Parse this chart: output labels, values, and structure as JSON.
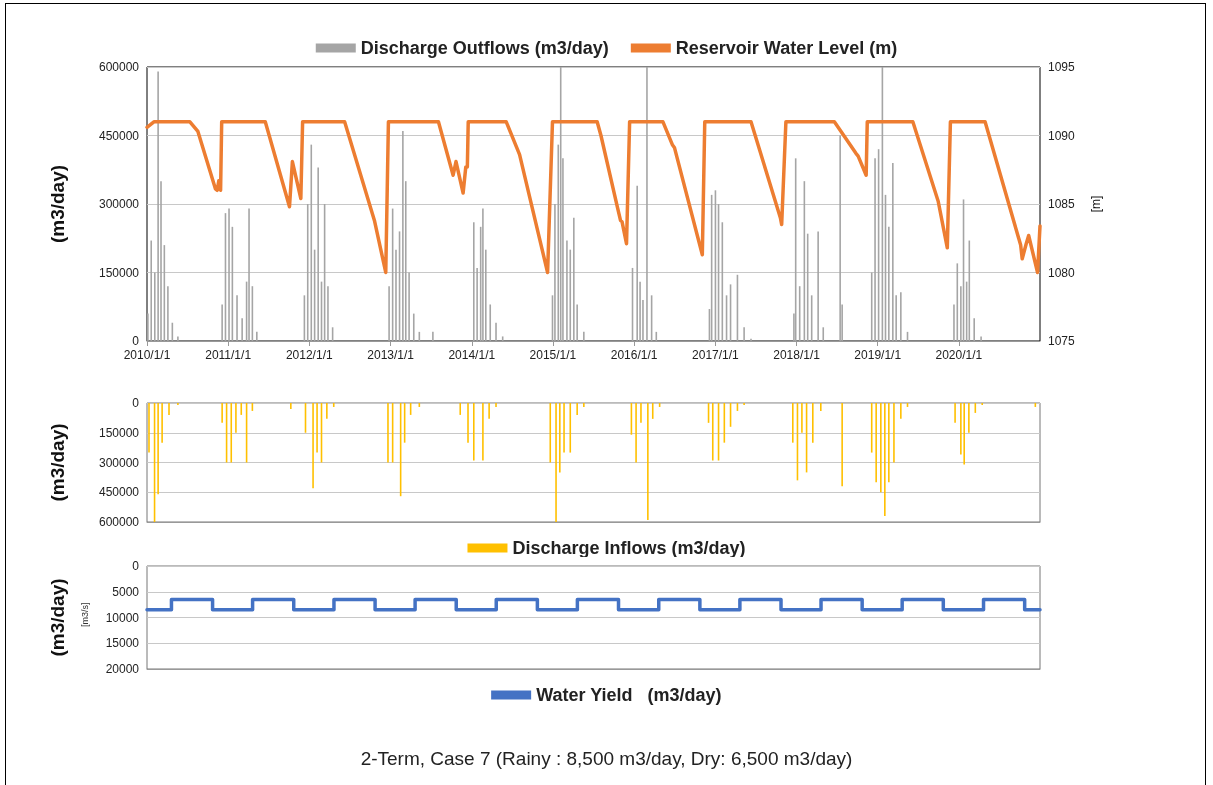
{
  "chart_data": [
    {
      "type": "bar",
      "ylabel": "(m3/day)",
      "y2label": "[m]",
      "xlim": [
        "2010-01-01",
        "2020-12-31"
      ],
      "xticks": [
        {
          "value": "2010-01-01",
          "label": "2010/1/1"
        },
        {
          "value": "2011-01-01",
          "label": "2011/1/1"
        },
        {
          "value": "2012-01-01",
          "label": "2012/1/1"
        },
        {
          "value": "2013-01-01",
          "label": "2013/1/1"
        },
        {
          "value": "2014-01-01",
          "label": "2014/1/1"
        },
        {
          "value": "2015-01-01",
          "label": "2015/1/1"
        },
        {
          "value": "2016-01-01",
          "label": "2016/1/1"
        },
        {
          "value": "2017-01-01",
          "label": "2017/1/1"
        },
        {
          "value": "2018-01-01",
          "label": "2018/1/1"
        },
        {
          "value": "2019-01-01",
          "label": "2019/1/1"
        },
        {
          "value": "2020-01-01",
          "label": "2020/1/1"
        }
      ],
      "ylim": [
        0,
        600000
      ],
      "yticks": [
        0,
        150000,
        300000,
        450000,
        600000
      ],
      "y2lim": [
        1075,
        1095
      ],
      "y2ticks": [
        1075,
        1080,
        1085,
        1090,
        1095
      ],
      "grid": "y",
      "legend": "top",
      "marker": "none",
      "line_style": "solid",
      "series": [
        {
          "name": "Discharge Outflows (m3/day)",
          "color": "#a5a5a5",
          "x": [
            "2010-01-05",
            "2010-01-20",
            "2010-02-05",
            "2010-02-20",
            "2010-03-05",
            "2010-03-20",
            "2010-04-05",
            "2010-04-25",
            "2010-05-20",
            "2010-12-05",
            "2010-12-20",
            "2011-01-05",
            "2011-01-20",
            "2011-02-10",
            "2011-03-05",
            "2011-03-25",
            "2011-04-05",
            "2011-04-20",
            "2011-05-10",
            "2011-12-10",
            "2011-12-25",
            "2012-01-10",
            "2012-01-25",
            "2012-02-10",
            "2012-02-25",
            "2012-03-10",
            "2012-03-25",
            "2012-04-15",
            "2012-12-25",
            "2013-01-10",
            "2013-01-25",
            "2013-02-10",
            "2013-02-25",
            "2013-03-10",
            "2013-03-25",
            "2013-04-15",
            "2013-05-10",
            "2013-07-10",
            "2014-01-10",
            "2014-01-25",
            "2014-02-10",
            "2014-02-20",
            "2014-03-05",
            "2014-03-25",
            "2014-04-20",
            "2014-05-20",
            "2014-12-30",
            "2015-01-10",
            "2015-01-25",
            "2015-02-05",
            "2015-02-15",
            "2015-03-05",
            "2015-03-20",
            "2015-04-05",
            "2015-04-20",
            "2015-05-20",
            "2015-12-25",
            "2016-01-15",
            "2016-01-28",
            "2016-02-10",
            "2016-02-28",
            "2016-03-20",
            "2016-04-10",
            "2016-12-05",
            "2016-12-15",
            "2017-01-01",
            "2017-01-15",
            "2017-02-01",
            "2017-02-20",
            "2017-03-10",
            "2017-04-10",
            "2017-05-10",
            "2017-06-10",
            "2017-12-20",
            "2017-12-28",
            "2018-01-15",
            "2018-02-05",
            "2018-02-20",
            "2018-03-10",
            "2018-04-08",
            "2018-05-01",
            "2018-07-16",
            "2018-07-25",
            "2018-12-05",
            "2018-12-20",
            "2019-01-05",
            "2019-01-22",
            "2019-02-05",
            "2019-02-20",
            "2019-03-10",
            "2019-03-25",
            "2019-04-15",
            "2019-05-15",
            "2019-12-10",
            "2019-12-25",
            "2020-01-10",
            "2020-01-22",
            "2020-02-05",
            "2020-02-17",
            "2020-03-10",
            "2020-04-10"
          ],
          "values": [
            60000,
            220000,
            150000,
            590000,
            350000,
            210000,
            120000,
            40000,
            10000,
            80000,
            280000,
            290000,
            250000,
            100000,
            50000,
            130000,
            290000,
            120000,
            20000,
            100000,
            300000,
            430000,
            200000,
            380000,
            130000,
            300000,
            120000,
            30000,
            120000,
            290000,
            200000,
            240000,
            460000,
            350000,
            150000,
            60000,
            20000,
            20000,
            260000,
            160000,
            250000,
            290000,
            200000,
            80000,
            40000,
            10000,
            100000,
            300000,
            430000,
            600000,
            400000,
            220000,
            200000,
            270000,
            80000,
            20000,
            160000,
            340000,
            130000,
            90000,
            600000,
            100000,
            20000,
            70000,
            320000,
            330000,
            300000,
            260000,
            100000,
            124000,
            145000,
            30000,
            5000,
            60000,
            400000,
            120000,
            350000,
            235000,
            100000,
            240000,
            30000,
            450000,
            80000,
            150000,
            400000,
            420000,
            600000,
            320000,
            250000,
            390000,
            100000,
            107000,
            20000,
            80000,
            170000,
            120000,
            310000,
            130000,
            220000,
            50000,
            10000
          ]
        },
        {
          "name": "Reservoir Water Level (m)",
          "type": "line",
          "axis": "y2",
          "color": "#ed7d31",
          "x": [
            "2010-01-01",
            "2010-02-01",
            "2010-07-13",
            "2010-08-18",
            "2010-11-05",
            "2010-11-13",
            "2010-11-20",
            "2010-11-28",
            "2010-12-03",
            "2011-06-17",
            "2011-10-04",
            "2011-10-17",
            "2011-11-24",
            "2011-12-02",
            "2012-06-08",
            "2012-10-20",
            "2012-12-10",
            "2012-12-22",
            "2013-08-04",
            "2013-10-09",
            "2013-10-22",
            "2013-11-23",
            "2013-12-05",
            "2013-12-12",
            "2013-12-16",
            "2014-06-05",
            "2014-08-04",
            "2014-12-08",
            "2014-12-30",
            "2015-07-19",
            "2015-08-05",
            "2015-10-19",
            "2015-11-01",
            "2015-11-08",
            "2015-11-28",
            "2015-12-12",
            "2016-05-10",
            "2016-06-22",
            "2016-07-01",
            "2016-11-03",
            "2016-11-14",
            "2017-06-10",
            "2017-10-20",
            "2017-10-26",
            "2017-11-14",
            "2018-06-20",
            "2018-09-25",
            "2018-10-05",
            "2018-11-10",
            "2018-11-15",
            "2019-06-08",
            "2019-09-30",
            "2019-11-10",
            "2019-11-24",
            "2020-04-28",
            "2020-10-05",
            "2020-10-12",
            "2020-10-30",
            "2020-11-10",
            "2020-12-20",
            "2020-12-31"
          ],
          "values": [
            1090.6,
            1091,
            1091,
            1090.3,
            1086.1,
            1086,
            1086.7,
            1086,
            1091,
            1091,
            1084.8,
            1088.1,
            1085.4,
            1091,
            1091,
            1083.8,
            1080,
            1091,
            1091,
            1087.1,
            1088.1,
            1085.8,
            1087.7,
            1087.7,
            1091,
            1091,
            1088.6,
            1080,
            1091,
            1091,
            1090,
            1084.7,
            1083.8,
            1083.7,
            1082.1,
            1091,
            1091,
            1089.3,
            1089.1,
            1081.3,
            1091,
            1091,
            1084,
            1083.5,
            1091,
            1091,
            1088.7,
            1088.5,
            1087.1,
            1091,
            1091,
            1085.2,
            1081.8,
            1091,
            1091,
            1082,
            1081,
            1082.1,
            1082.7,
            1080,
            1083.4
          ]
        }
      ]
    },
    {
      "type": "bar",
      "ylabel": "(m3/day)",
      "xlim": [
        "2010-01-01",
        "2020-12-31"
      ],
      "ylim": [
        600000,
        0
      ],
      "yticks": [
        0,
        150000,
        300000,
        450000,
        600000
      ],
      "grid": "y",
      "legend": "bottom",
      "tick_labels": "y",
      "series": [
        {
          "name": "Discharge Inflows (m3/day)",
          "color": "#ffc000",
          "x": [
            "2010-01-10",
            "2010-02-04",
            "2010-02-20",
            "2010-03-10",
            "2010-04-10",
            "2010-05-20",
            "2010-12-05",
            "2010-12-25",
            "2011-01-15",
            "2011-02-05",
            "2011-03-01",
            "2011-03-25",
            "2011-04-20",
            "2011-10-10",
            "2011-12-15",
            "2012-01-18",
            "2012-02-05",
            "2012-02-25",
            "2012-03-20",
            "2012-04-20",
            "2012-12-20",
            "2013-01-10",
            "2013-02-15",
            "2013-03-05",
            "2013-04-01",
            "2013-05-10",
            "2013-11-10",
            "2013-12-15",
            "2014-01-10",
            "2014-02-20",
            "2014-03-20",
            "2014-04-20",
            "2014-12-20",
            "2015-01-15",
            "2015-02-01",
            "2015-02-20",
            "2015-03-20",
            "2015-04-20",
            "2015-05-20",
            "2015-12-20",
            "2016-01-10",
            "2016-02-01",
            "2016-03-03",
            "2016-03-25",
            "2016-04-25",
            "2016-12-01",
            "2016-12-20",
            "2017-01-15",
            "2017-02-10",
            "2017-03-10",
            "2017-04-10",
            "2017-05-10",
            "2017-12-15",
            "2018-01-05",
            "2018-01-25",
            "2018-02-15",
            "2018-03-15",
            "2018-04-20",
            "2018-07-25",
            "2018-12-05",
            "2018-12-25",
            "2019-01-15",
            "2019-02-02",
            "2019-02-20",
            "2019-03-15",
            "2019-04-15",
            "2019-05-15",
            "2019-12-15",
            "2020-01-10",
            "2020-01-25",
            "2020-02-15",
            "2020-03-15",
            "2020-04-15",
            "2020-12-10"
          ],
          "values": [
            250000,
            600000,
            460000,
            200000,
            60000,
            10000,
            100000,
            300000,
            300000,
            150000,
            60000,
            300000,
            40000,
            30000,
            150000,
            430000,
            250000,
            300000,
            80000,
            20000,
            300000,
            300000,
            470000,
            200000,
            60000,
            20000,
            60000,
            200000,
            290000,
            290000,
            80000,
            20000,
            300000,
            600000,
            350000,
            250000,
            250000,
            60000,
            20000,
            160000,
            300000,
            100000,
            590000,
            80000,
            20000,
            100000,
            290000,
            290000,
            200000,
            120000,
            40000,
            10000,
            200000,
            390000,
            150000,
            350000,
            200000,
            40000,
            420000,
            250000,
            400000,
            450000,
            570000,
            400000,
            300000,
            80000,
            20000,
            100000,
            260000,
            310000,
            150000,
            50000,
            10000,
            20000
          ]
        }
      ]
    },
    {
      "type": "step",
      "ylabel": "(m3/day)",
      "annotations": [
        "[m3/s]",
        "2-Term, Case 7 (Rainy : 8,500 m3/day, Dry: 6,500 m3/day)"
      ],
      "xlim": [
        "2010-01-01",
        "2020-12-31"
      ],
      "ylim": [
        20000,
        0
      ],
      "yticks": [
        0,
        5000,
        10000,
        15000,
        20000
      ],
      "grid": "y",
      "legend": "bottom",
      "tick_labels": "y",
      "marker": "none",
      "line_style": "solid",
      "series": [
        {
          "name": "Water Yield   (m3/day)",
          "color": "#4472c4",
          "x": [
            "2010-01-01",
            "2010-04-21",
            "2010-10-23",
            "2011-04-21",
            "2011-10-23",
            "2012-04-21",
            "2012-10-23",
            "2013-04-21",
            "2013-10-23",
            "2014-04-21",
            "2014-10-23",
            "2015-04-21",
            "2015-10-23",
            "2016-04-21",
            "2016-10-23",
            "2017-04-21",
            "2017-10-23",
            "2018-04-21",
            "2018-10-23",
            "2019-04-21",
            "2019-10-23",
            "2020-04-21",
            "2020-10-23",
            "2020-12-31"
          ],
          "values": [
            8500,
            6500,
            8500,
            6500,
            8500,
            6500,
            8500,
            6500,
            8500,
            6500,
            8500,
            6500,
            8500,
            6500,
            8500,
            6500,
            8500,
            6500,
            8500,
            6500,
            8500,
            6500,
            8500,
            8500
          ]
        }
      ]
    }
  ]
}
